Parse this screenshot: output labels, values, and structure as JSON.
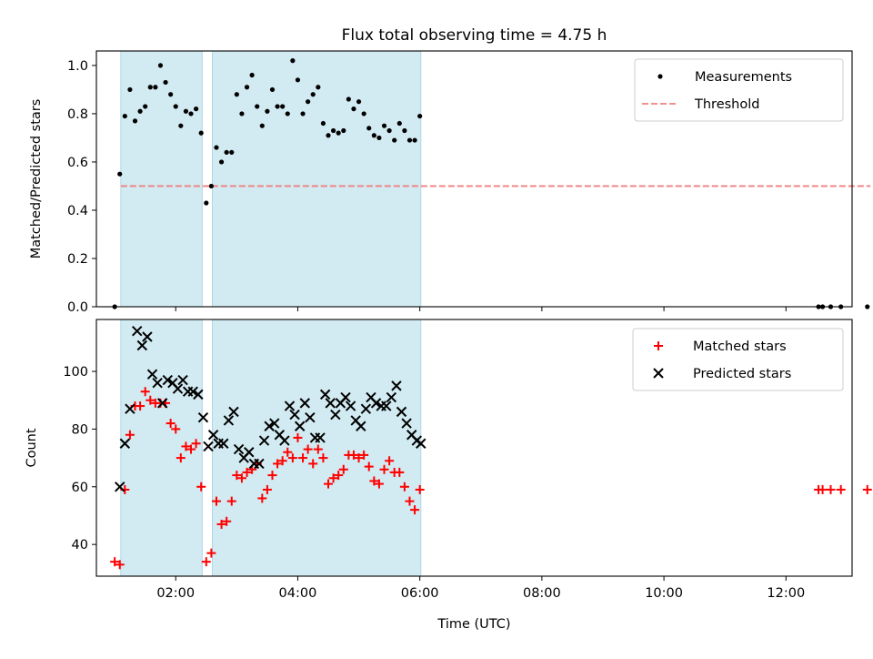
{
  "title": "Flux total observing time = 4.75 h",
  "colors": {
    "measurement": "#000000",
    "threshold": "#f08080",
    "matched": "#ff0000",
    "predicted": "#000000",
    "shaded_span": "#add8e6"
  },
  "chart_data": [
    {
      "type": "scatter",
      "ylabel": "Matched/Predicted stars",
      "xlabel": "",
      "xlim": [
        "00:42",
        "13:05"
      ],
      "ylim": [
        0,
        1.06
      ],
      "yticks": [
        "0.0",
        "0.2",
        "0.4",
        "0.6",
        "0.8",
        "1.0"
      ],
      "shaded_spans": [
        [
          "01:06",
          "02:26"
        ],
        [
          "02:36",
          "06:01"
        ]
      ],
      "legend": {
        "placement": "top-right",
        "entries": [
          "Measurements",
          "Threshold"
        ]
      },
      "threshold": {
        "value": 0.5,
        "x_range": [
          "01:06",
          "13:23"
        ],
        "style": "dashed"
      },
      "series": [
        {
          "name": "Measurements",
          "x": [
            "01:00",
            "01:05",
            "01:10",
            "01:15",
            "01:20",
            "01:25",
            "01:30",
            "01:35",
            "01:40",
            "01:45",
            "01:50",
            "01:55",
            "02:00",
            "02:05",
            "02:10",
            "02:15",
            "02:20",
            "02:25",
            "02:30",
            "02:35",
            "02:40",
            "02:45",
            "02:50",
            "02:55",
            "03:00",
            "03:05",
            "03:10",
            "03:15",
            "03:20",
            "03:25",
            "03:30",
            "03:35",
            "03:40",
            "03:45",
            "03:50",
            "03:55",
            "04:00",
            "04:05",
            "04:10",
            "04:15",
            "04:20",
            "04:25",
            "04:30",
            "04:35",
            "04:40",
            "04:45",
            "04:50",
            "04:55",
            "05:00",
            "05:05",
            "05:10",
            "05:15",
            "05:20",
            "05:25",
            "05:30",
            "05:35",
            "05:40",
            "05:45",
            "05:50",
            "05:55",
            "06:00",
            "12:32",
            "12:36",
            "12:44",
            "12:54",
            "13:20"
          ],
          "y": [
            0.0,
            0.55,
            0.79,
            0.9,
            0.77,
            0.81,
            0.83,
            0.91,
            0.91,
            1.0,
            0.93,
            0.88,
            0.83,
            0.75,
            0.81,
            0.8,
            0.82,
            0.72,
            0.43,
            0.5,
            0.66,
            0.6,
            0.64,
            0.64,
            0.88,
            0.8,
            0.91,
            0.96,
            0.83,
            0.75,
            0.81,
            0.9,
            0.83,
            0.83,
            0.8,
            1.02,
            0.94,
            0.8,
            0.85,
            0.88,
            0.91,
            0.76,
            0.71,
            0.73,
            0.72,
            0.73,
            0.86,
            0.82,
            0.85,
            0.8,
            0.74,
            0.71,
            0.7,
            0.75,
            0.73,
            0.69,
            0.76,
            0.73,
            0.69,
            0.69,
            0.79,
            0.0,
            0.0,
            0.0,
            0.0,
            0.0
          ]
        }
      ]
    },
    {
      "type": "scatter",
      "xlabel": "Time (UTC)",
      "ylabel": "Count",
      "xlim": [
        "00:42",
        "13:05"
      ],
      "ylim": [
        29,
        118
      ],
      "xticks": [
        "02:00",
        "04:00",
        "06:00",
        "08:00",
        "10:00",
        "12:00"
      ],
      "yticks": [
        "40",
        "60",
        "80",
        "100"
      ],
      "shaded_spans": [
        [
          "01:06",
          "02:26"
        ],
        [
          "02:36",
          "06:01"
        ]
      ],
      "legend": {
        "placement": "top-right",
        "entries": [
          "Matched stars",
          "Predicted stars"
        ]
      },
      "series": [
        {
          "name": "Matched stars",
          "marker": "+",
          "x": [
            "01:00",
            "01:05",
            "01:10",
            "01:15",
            "01:20",
            "01:25",
            "01:30",
            "01:35",
            "01:40",
            "01:45",
            "01:50",
            "01:55",
            "02:00",
            "02:05",
            "02:10",
            "02:15",
            "02:20",
            "02:25",
            "02:30",
            "02:35",
            "02:40",
            "02:45",
            "02:50",
            "02:55",
            "03:00",
            "03:05",
            "03:10",
            "03:15",
            "03:20",
            "03:25",
            "03:30",
            "03:35",
            "03:40",
            "03:45",
            "03:50",
            "03:55",
            "04:00",
            "04:05",
            "04:10",
            "04:15",
            "04:20",
            "04:25",
            "04:30",
            "04:35",
            "04:40",
            "04:45",
            "04:50",
            "04:55",
            "05:00",
            "05:05",
            "05:10",
            "05:15",
            "05:20",
            "05:25",
            "05:30",
            "05:35",
            "05:40",
            "05:45",
            "05:50",
            "05:55",
            "06:00",
            "12:32",
            "12:36",
            "12:44",
            "12:54",
            "13:20"
          ],
          "y": [
            34,
            33,
            59,
            78,
            88,
            88,
            93,
            90,
            89,
            89,
            89,
            82,
            80,
            70,
            74,
            73,
            75,
            60,
            34,
            37,
            55,
            47,
            48,
            55,
            64,
            63,
            65,
            66,
            68,
            56,
            59,
            64,
            68,
            69,
            72,
            70,
            77,
            70,
            73,
            68,
            73,
            70,
            61,
            63,
            64,
            66,
            71,
            71,
            70,
            71,
            67,
            62,
            61,
            66,
            69,
            65,
            65,
            60,
            55,
            52,
            59,
            59,
            59,
            59,
            59,
            59
          ]
        },
        {
          "name": "Predicted stars",
          "marker": "x",
          "x": [
            "01:05",
            "01:10",
            "01:15",
            "01:22",
            "01:27",
            "01:32",
            "01:37",
            "01:42",
            "01:47",
            "01:52",
            "01:57",
            "02:02",
            "02:07",
            "02:12",
            "02:17",
            "02:22",
            "02:27",
            "02:32",
            "02:37",
            "02:42",
            "02:47",
            "02:52",
            "02:57",
            "03:02",
            "03:07",
            "03:12",
            "03:17",
            "03:22",
            "03:27",
            "03:32",
            "03:37",
            "03:42",
            "03:47",
            "03:52",
            "03:57",
            "04:02",
            "04:07",
            "04:12",
            "04:17",
            "04:22",
            "04:27",
            "04:32",
            "04:37",
            "04:42",
            "04:47",
            "04:52",
            "04:57",
            "05:02",
            "05:07",
            "05:12",
            "05:17",
            "05:22",
            "05:27",
            "05:32",
            "05:37",
            "05:42",
            "05:47",
            "05:52",
            "05:57",
            "06:01"
          ],
          "y": [
            60,
            75,
            87,
            114,
            109,
            112,
            99,
            96,
            89,
            97,
            96,
            94,
            97,
            93,
            93,
            92,
            84,
            74,
            78,
            75,
            75,
            83,
            86,
            73,
            70,
            72,
            68,
            68,
            76,
            81,
            82,
            78,
            76,
            88,
            85,
            81,
            89,
            84,
            77,
            77,
            92,
            89,
            85,
            89,
            91,
            88,
            83,
            81,
            87,
            91,
            89,
            88,
            88,
            91,
            95,
            86,
            82,
            78,
            76,
            75
          ]
        }
      ]
    }
  ]
}
